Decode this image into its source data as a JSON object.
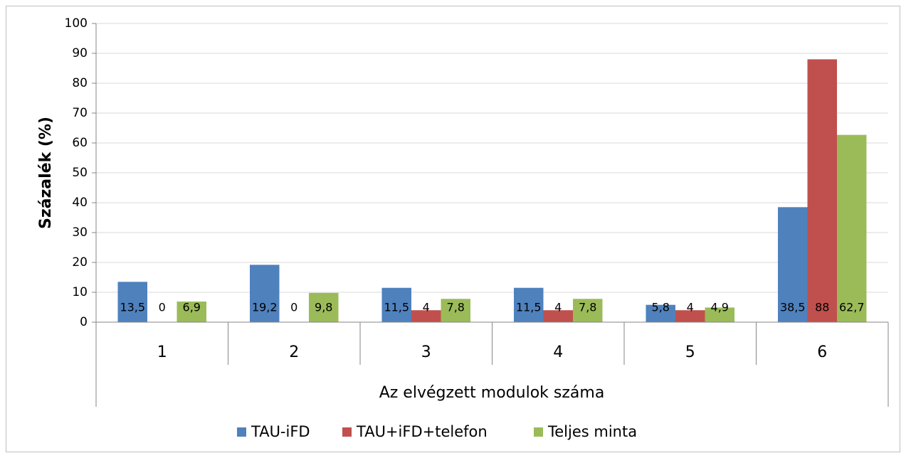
{
  "chart_data": {
    "type": "bar",
    "y_label": "Százalék (%)",
    "x_label": "Az elvégzett modulok száma",
    "categories": [
      "1",
      "2",
      "3",
      "4",
      "5",
      "6"
    ],
    "series": [
      {
        "name": "TAU-iFD",
        "color": "#4f81bd",
        "values": [
          13.5,
          19.2,
          11.5,
          11.5,
          5.8,
          38.5
        ],
        "value_labels": [
          "13,5",
          "19,2",
          "11,5",
          "11,5",
          "5,8",
          "38,5"
        ]
      },
      {
        "name": "TAU+iFD+telefon",
        "color": "#c0504d",
        "values": [
          0,
          0,
          4,
          4,
          4,
          88
        ],
        "value_labels": [
          "0",
          "0",
          "4",
          "4",
          "4",
          "88"
        ]
      },
      {
        "name": "Teljes minta",
        "color": "#9bbb59",
        "values": [
          6.9,
          9.8,
          7.8,
          7.8,
          4.9,
          62.7
        ],
        "value_labels": [
          "6,9",
          "9,8",
          "7,8",
          "7,8",
          "4,9",
          "62,7"
        ]
      }
    ],
    "ylim": [
      0,
      100
    ],
    "yticks": [
      0,
      10,
      20,
      30,
      40,
      50,
      60,
      70,
      80,
      90,
      100
    ],
    "grid": true,
    "legend": "bottom"
  }
}
